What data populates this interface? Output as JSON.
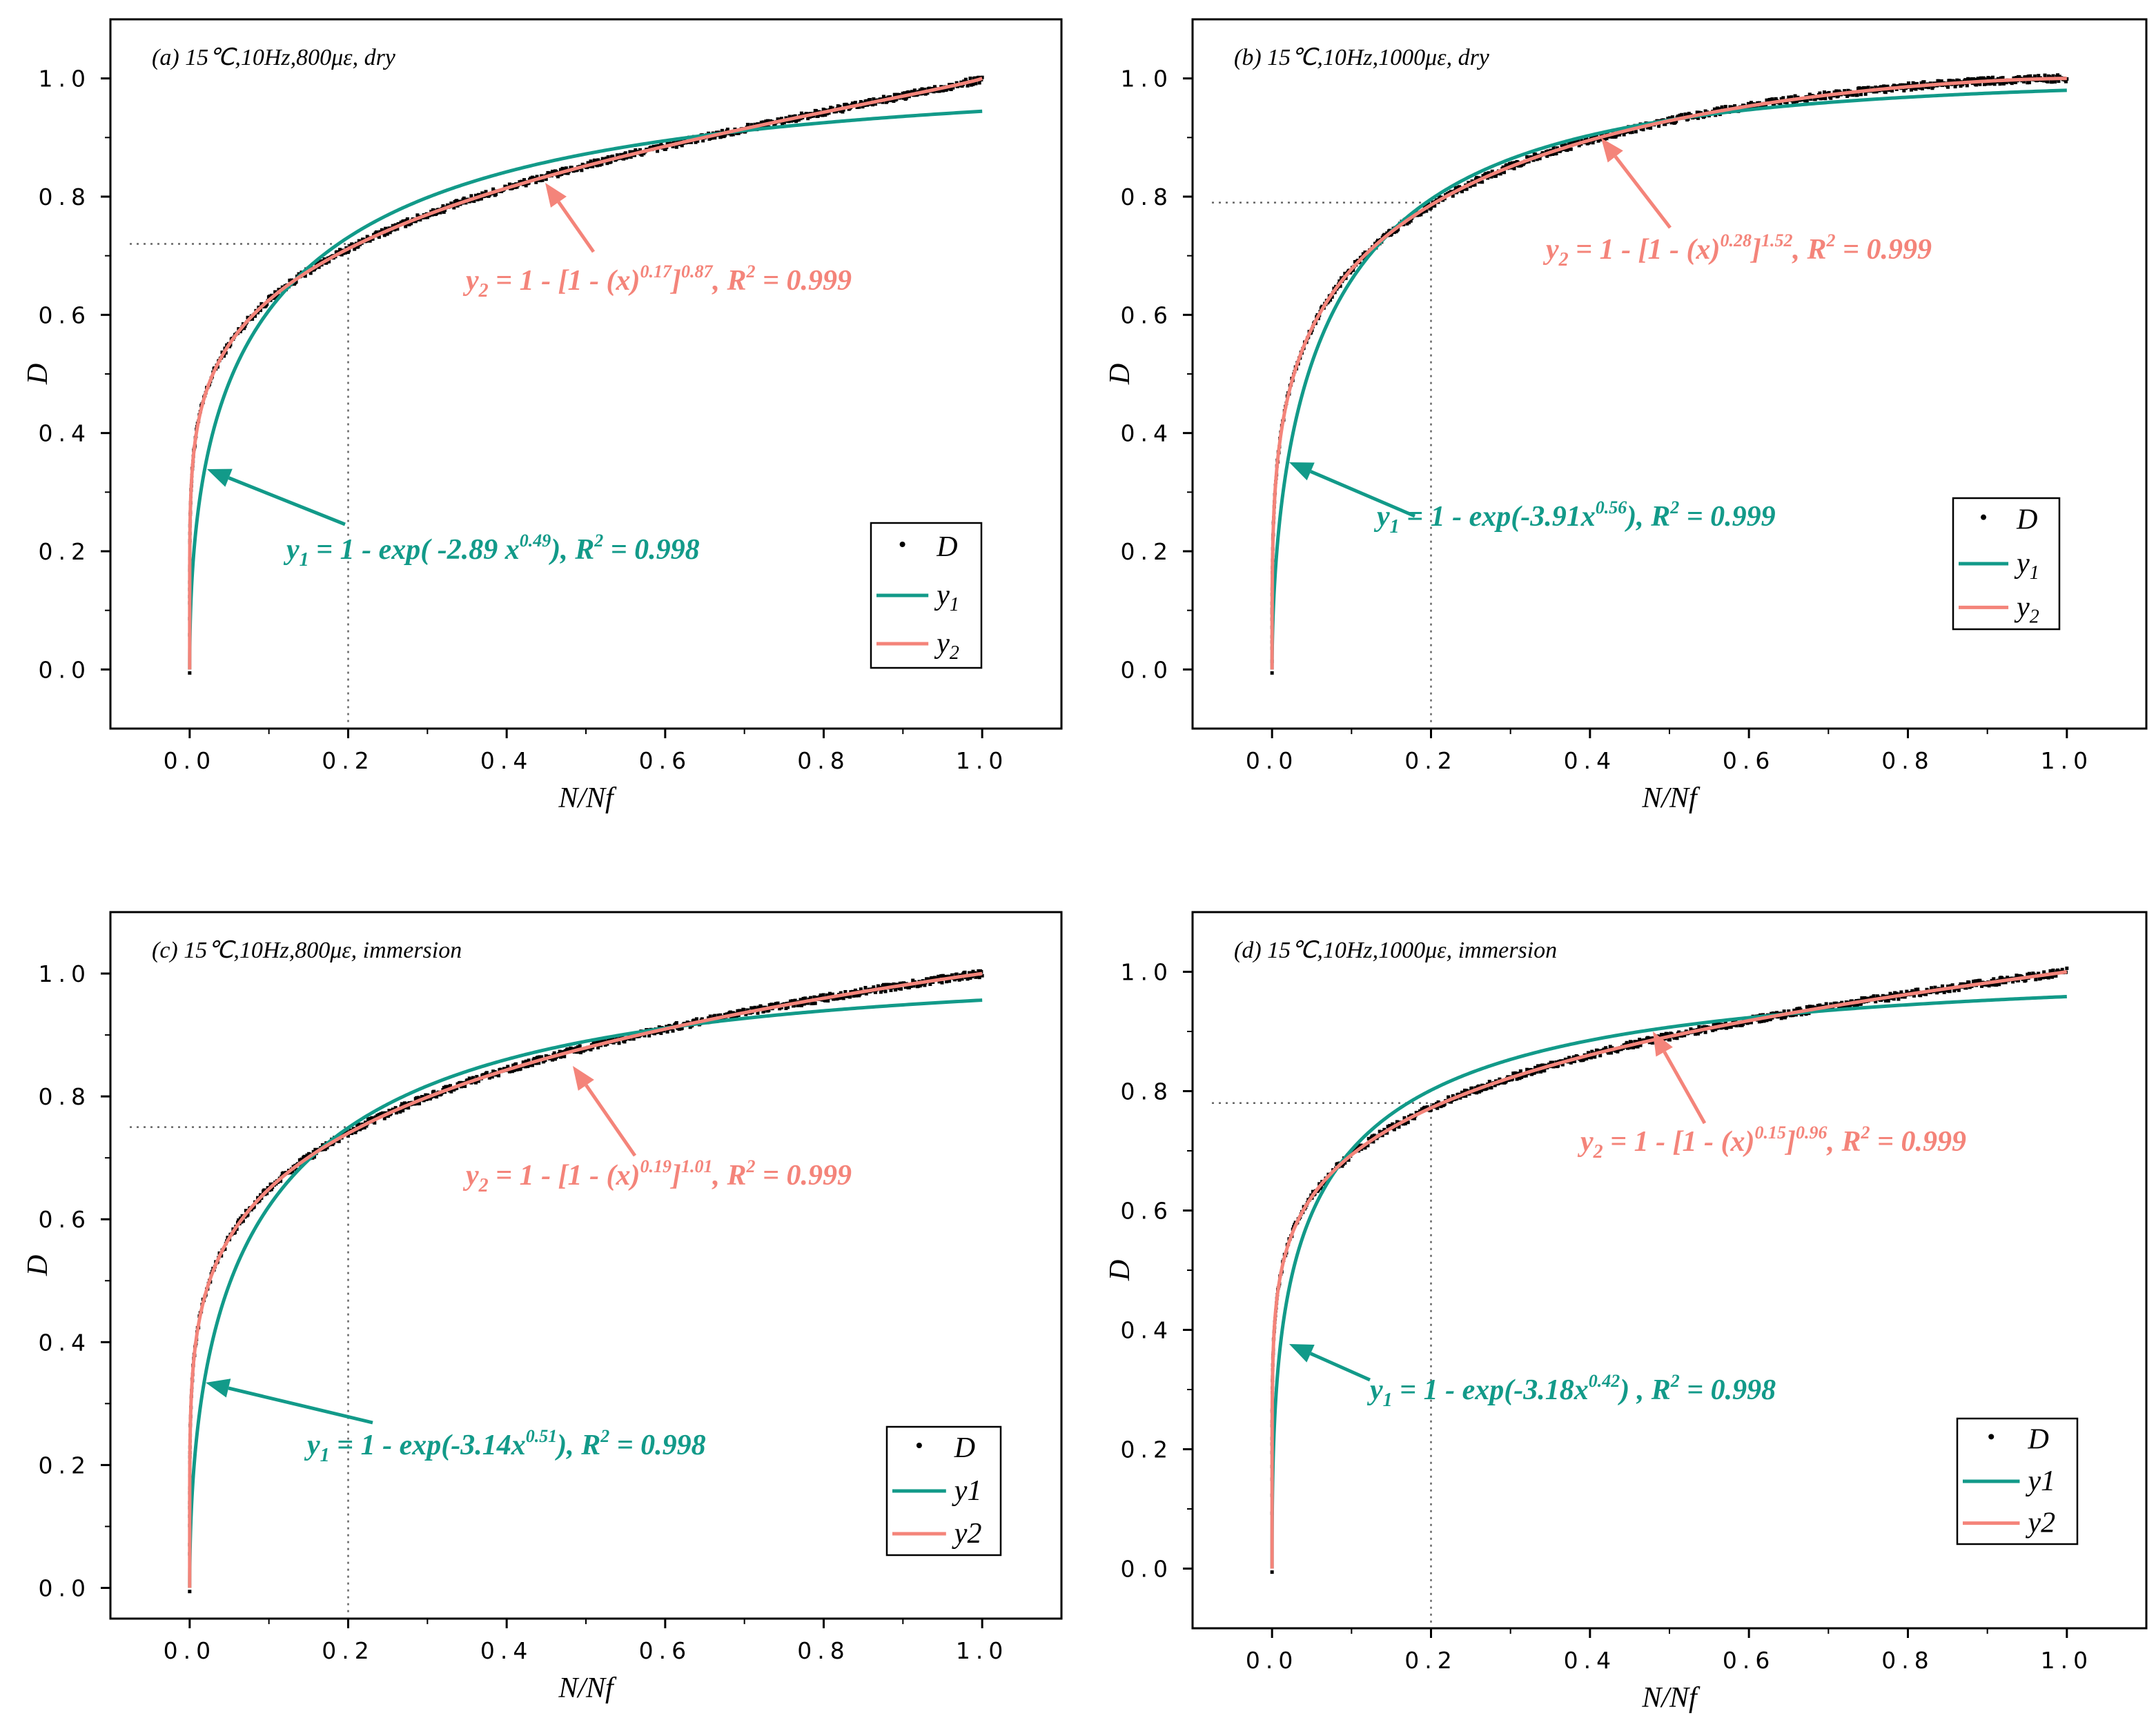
{
  "colors": {
    "data": "#000000",
    "y1": "#129a89",
    "y2": "#f4847a",
    "guide": "#666666",
    "axis": "#000000"
  },
  "chart_data": [
    {
      "type": "line",
      "title": "(a) 15℃,10Hz,800με, dry",
      "xlabel": "N/Nf",
      "ylabel": "D",
      "xlim": [
        -0.1,
        1.1
      ],
      "ylim": [
        -0.1,
        1.1
      ],
      "xticks": [
        "0.0",
        "0.2",
        "0.4",
        "0.6",
        "0.8",
        "1.0"
      ],
      "yticks": [
        "0.0",
        "0.2",
        "0.4",
        "0.6",
        "0.8",
        "1.0"
      ],
      "guide": {
        "x": 0.2,
        "y": 0.72
      },
      "series": [
        {
          "name": "D",
          "kind": "scatter",
          "model": "weibull",
          "a": 0.17,
          "b": 0.87
        },
        {
          "name": "y1",
          "kind": "line",
          "model": "exp",
          "k": 2.89,
          "n": 0.49
        },
        {
          "name": "y2",
          "kind": "line",
          "model": "weibull",
          "a": 0.17,
          "b": 0.87
        }
      ],
      "legend": {
        "position": "bottom-right",
        "entries": [
          "D",
          "y1",
          "y2"
        ],
        "subscript_style": true
      },
      "annotations": {
        "y2": {
          "prefix": "y",
          "sub": "2",
          "mid": " = 1 - [1 - (x)",
          "sup1": "0.17",
          "mid2": "]",
          "sup2": "0.87",
          "tail": ", R",
          "sup3": "2",
          "end": " = 0.999"
        },
        "y1": {
          "prefix": "y",
          "sub": "1",
          "mid": " =  1 - exp( -2.89 x",
          "sup1": "0.49",
          "tail": "), R",
          "sup3": "2",
          "end": " = 0.998"
        }
      }
    },
    {
      "type": "line",
      "title": "(b) 15℃,10Hz,1000με, dry",
      "xlabel": "N/Nf",
      "ylabel": "D",
      "xlim": [
        -0.1,
        1.1
      ],
      "ylim": [
        -0.1,
        1.1
      ],
      "xticks": [
        "0.0",
        "0.2",
        "0.4",
        "0.6",
        "0.8",
        "1.0"
      ],
      "yticks": [
        "0.0",
        "0.2",
        "0.4",
        "0.6",
        "0.8",
        "1.0"
      ],
      "guide": {
        "x": 0.2,
        "y": 0.79
      },
      "series": [
        {
          "name": "D",
          "kind": "scatter",
          "model": "weibull",
          "a": 0.28,
          "b": 1.52
        },
        {
          "name": "y1",
          "kind": "line",
          "model": "exp",
          "k": 3.91,
          "n": 0.56
        },
        {
          "name": "y2",
          "kind": "line",
          "model": "weibull",
          "a": 0.28,
          "b": 1.52
        }
      ],
      "legend": {
        "position": "bottom-right",
        "entries": [
          "D",
          "y1",
          "y2"
        ],
        "subscript_style": true
      },
      "annotations": {
        "y2": {
          "prefix": "y",
          "sub": "2",
          "mid": " = 1 - [1 - (x)",
          "sup1": "0.28",
          "mid2": "]",
          "sup2": "1.52",
          "tail": ", R",
          "sup3": "2",
          "end": " = 0.999"
        },
        "y1": {
          "prefix": "y",
          "sub": "1",
          "mid": " = 1 - exp(-3.91x",
          "sup1": "0.56",
          "tail": "), R",
          "sup3": "2",
          "end": " = 0.999"
        }
      }
    },
    {
      "type": "line",
      "title": "(c) 15℃,10Hz,800με, immersion",
      "xlabel": "N/Nf",
      "ylabel": "D",
      "xlim": [
        -0.1,
        1.1
      ],
      "ylim": [
        -0.05,
        1.1
      ],
      "xticks": [
        "0.0",
        "0.2",
        "0.4",
        "0.6",
        "0.8",
        "1.0"
      ],
      "yticks": [
        "0.0",
        "0.2",
        "0.4",
        "0.6",
        "0.8",
        "1.0"
      ],
      "guide": {
        "x": 0.2,
        "y": 0.75
      },
      "series": [
        {
          "name": "D",
          "kind": "scatter",
          "model": "weibull",
          "a": 0.19,
          "b": 1.01
        },
        {
          "name": "y1",
          "kind": "line",
          "model": "exp",
          "k": 3.14,
          "n": 0.51
        },
        {
          "name": "y2",
          "kind": "line",
          "model": "weibull",
          "a": 0.19,
          "b": 1.01
        }
      ],
      "legend": {
        "position": "bottom-right",
        "entries": [
          "D",
          "y1",
          "y2"
        ],
        "subscript_style": false
      },
      "annotations": {
        "y2": {
          "prefix": "y",
          "sub": "2",
          "mid": " = 1 - [1 - (x)",
          "sup1": "0.19",
          "mid2": "]",
          "sup2": "1.01",
          "tail": ", R",
          "sup3": "2",
          "end": " = 0.999"
        },
        "y1": {
          "prefix": "y",
          "sub": "1",
          "mid": " = 1 - exp(-3.14x",
          "sup1": "0.51",
          "tail": "), R",
          "sup3": "2",
          "end": " = 0.998"
        }
      }
    },
    {
      "type": "line",
      "title": "(d) 15℃,10Hz,1000με, immersion",
      "xlabel": "N/Nf",
      "ylabel": "D",
      "xlim": [
        -0.1,
        1.1
      ],
      "ylim": [
        -0.1,
        1.1
      ],
      "xticks": [
        "0.0",
        "0.2",
        "0.4",
        "0.6",
        "0.8",
        "1.0"
      ],
      "yticks": [
        "0.0",
        "0.2",
        "0.4",
        "0.6",
        "0.8",
        "1.0"
      ],
      "guide": {
        "x": 0.2,
        "y": 0.78
      },
      "series": [
        {
          "name": "D",
          "kind": "scatter",
          "model": "weibull",
          "a": 0.15,
          "b": 0.96
        },
        {
          "name": "y1",
          "kind": "line",
          "model": "exp",
          "k": 3.18,
          "n": 0.42
        },
        {
          "name": "y2",
          "kind": "line",
          "model": "weibull",
          "a": 0.15,
          "b": 0.96
        }
      ],
      "legend": {
        "position": "bottom-right",
        "entries": [
          "D",
          "y1",
          "y2"
        ],
        "subscript_style": false
      },
      "annotations": {
        "y2": {
          "prefix": "y",
          "sub": "2",
          "mid": " = 1 - [1 - (x)",
          "sup1": "0.15",
          "mid2": "]",
          "sup2": "0.96",
          "tail": ", R",
          "sup3": "2",
          "end": " = 0.999"
        },
        "y1": {
          "prefix": "y",
          "sub": "1",
          "mid": " = 1 - exp(-3.18x",
          "sup1": "0.42",
          "tail": ") , R",
          "sup3": "2",
          "end": " = 0.998"
        }
      }
    }
  ]
}
